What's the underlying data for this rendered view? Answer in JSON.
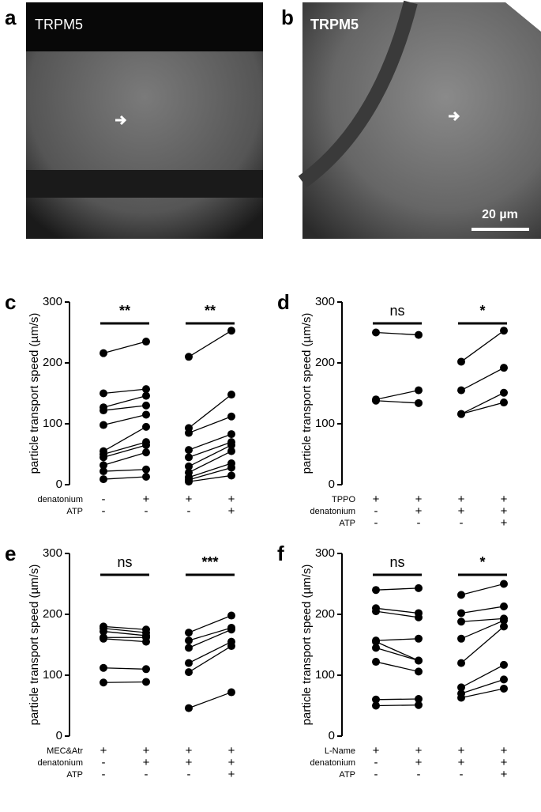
{
  "images": [
    {
      "label": "a",
      "caption": "TRPM5"
    },
    {
      "label": "b",
      "caption": "TRPM5",
      "scale_bar": "20 µm"
    }
  ],
  "chart_data": [
    {
      "type": "paired",
      "panel_label": "c",
      "y_label": "particle transport speed (µm/s)",
      "ylim": [
        0,
        300
      ],
      "yticks": [
        0,
        100,
        200,
        300
      ],
      "color": "#000000",
      "conditions": [
        {
          "name": "denatonium",
          "signs": [
            "-",
            "+",
            "+",
            "+"
          ]
        },
        {
          "name": "ATP",
          "signs": [
            "-",
            "-",
            "-",
            "+"
          ]
        }
      ],
      "comparisons": [
        {
          "significance": "**",
          "before": [
            216,
            150,
            127,
            122,
            98,
            55,
            50,
            45,
            32,
            22,
            9
          ],
          "after": [
            235,
            157,
            146,
            130,
            115,
            95,
            70,
            65,
            53,
            25,
            13
          ]
        },
        {
          "significance": "**",
          "before": [
            210,
            93,
            85,
            57,
            45,
            30,
            20,
            12,
            8,
            5
          ],
          "after": [
            253,
            148,
            112,
            83,
            70,
            65,
            55,
            35,
            28,
            15
          ]
        }
      ]
    },
    {
      "type": "paired",
      "panel_label": "d",
      "y_label": "particle transport speed (µm/s)",
      "ylim": [
        0,
        300
      ],
      "yticks": [
        0,
        100,
        200,
        300
      ],
      "color": "#000000",
      "conditions": [
        {
          "name": "TPPO",
          "signs": [
            "+",
            "+",
            "+",
            "+"
          ]
        },
        {
          "name": "denatonium",
          "signs": [
            "-",
            "+",
            "+",
            "+"
          ]
        },
        {
          "name": "ATP",
          "signs": [
            "-",
            "-",
            "-",
            "+"
          ]
        }
      ],
      "comparisons": [
        {
          "significance": "ns",
          "before": [
            250,
            140,
            138
          ],
          "after": [
            246,
            155,
            134
          ]
        },
        {
          "significance": "*",
          "before": [
            202,
            155,
            116,
            116
          ],
          "after": [
            253,
            192,
            151,
            135
          ]
        }
      ]
    },
    {
      "type": "paired",
      "panel_label": "e",
      "y_label": "particle transport speed (µm/s)",
      "ylim": [
        0,
        300
      ],
      "yticks": [
        0,
        100,
        200,
        300
      ],
      "color": "#000000",
      "conditions": [
        {
          "name": "MEC&Atr",
          "signs": [
            "+",
            "+",
            "+",
            "+"
          ]
        },
        {
          "name": "denatonium",
          "signs": [
            "-",
            "+",
            "+",
            "+"
          ]
        },
        {
          "name": "ATP",
          "signs": [
            "-",
            "-",
            "-",
            "+"
          ]
        }
      ],
      "comparisons": [
        {
          "significance": "ns",
          "before": [
            180,
            177,
            172,
            162,
            160,
            112,
            88
          ],
          "after": [
            175,
            170,
            165,
            162,
            155,
            110,
            89
          ]
        },
        {
          "significance": "***",
          "before": [
            170,
            157,
            145,
            120,
            105,
            46
          ],
          "after": [
            198,
            178,
            175,
            155,
            148,
            72
          ]
        }
      ]
    },
    {
      "type": "paired",
      "panel_label": "f",
      "y_label": "particle transport speed (µm/s)",
      "ylim": [
        0,
        300
      ],
      "yticks": [
        0,
        100,
        200,
        300
      ],
      "color": "#000000",
      "conditions": [
        {
          "name": "L-Name",
          "signs": [
            "+",
            "+",
            "+",
            "+"
          ]
        },
        {
          "name": "denatonium",
          "signs": [
            "-",
            "+",
            "+",
            "+"
          ]
        },
        {
          "name": "ATP",
          "signs": [
            "-",
            "-",
            "-",
            "+"
          ]
        }
      ],
      "comparisons": [
        {
          "significance": "ns",
          "before": [
            240,
            210,
            205,
            157,
            155,
            145,
            122,
            60,
            50
          ],
          "after": [
            243,
            202,
            195,
            160,
            124,
            124,
            106,
            61,
            51
          ]
        },
        {
          "significance": "*",
          "before": [
            232,
            202,
            188,
            160,
            120,
            80,
            70,
            63
          ],
          "after": [
            250,
            213,
            193,
            190,
            180,
            117,
            93,
            78
          ]
        }
      ]
    }
  ]
}
